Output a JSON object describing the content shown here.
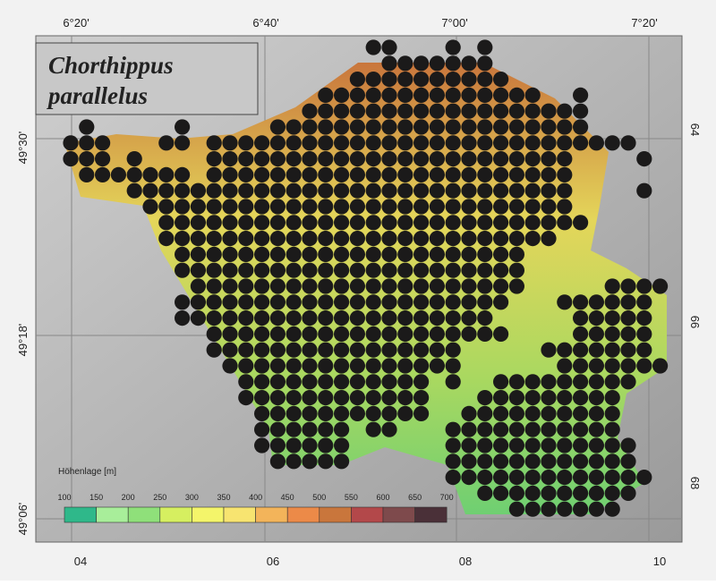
{
  "title": [
    "Chorthippus",
    "parallelus"
  ],
  "longitude_labels": [
    "6°20'",
    "6°40'",
    "7°00'",
    "7°20'"
  ],
  "latitude_labels": [
    "49°30'",
    "49°18'",
    "49°06'"
  ],
  "grid_x_labels": [
    "04",
    "06",
    "08",
    "10"
  ],
  "grid_y_labels": [
    "64",
    "66",
    "68"
  ],
  "legend": {
    "title": "Höhenlage [m]",
    "ticks": [
      100,
      150,
      200,
      250,
      300,
      350,
      400,
      450,
      500,
      550,
      600,
      650,
      700
    ]
  }
}
